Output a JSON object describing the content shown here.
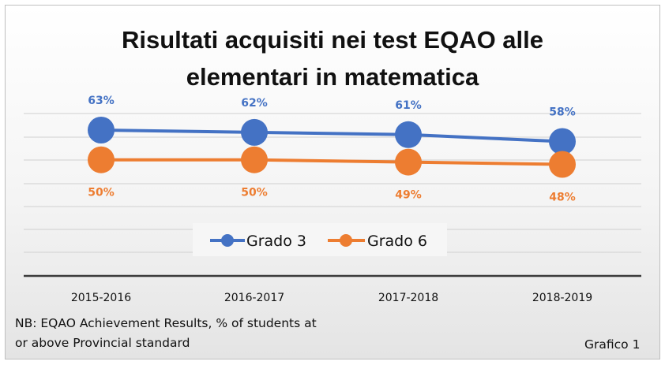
{
  "chart_data": {
    "type": "line",
    "title": [
      "Risultati acquisiti nei test EQAO alle",
      "elementari in matematica"
    ],
    "categories": [
      "2015-2016",
      "2016-2017",
      "2017-2018",
      "2018-2019"
    ],
    "series": [
      {
        "name": "Grado 3",
        "values": [
          63,
          62,
          61,
          58
        ],
        "labels": [
          "63%",
          "62%",
          "61%",
          "58%"
        ],
        "color": "#4472C4",
        "label_position": "above"
      },
      {
        "name": "Grado 6",
        "values": [
          50,
          50,
          49,
          48
        ],
        "labels": [
          "50%",
          "50%",
          "49%",
          "48%"
        ],
        "color": "#ED7D31",
        "label_position": "below"
      }
    ],
    "grid": true,
    "legend": "bottom-center",
    "note": [
      "NB: EQAO Achievement Results, % of students at",
      "or above Provincial standard"
    ],
    "figure_label": "Grafico 1"
  }
}
